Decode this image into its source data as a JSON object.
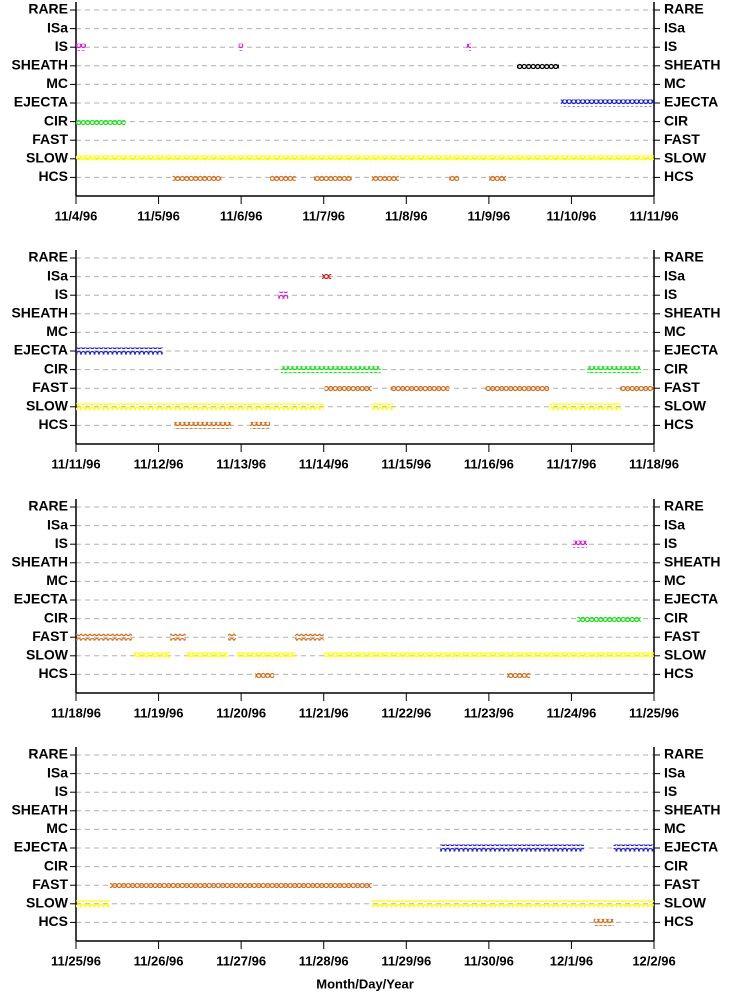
{
  "chart_data": [
    {
      "type": "timeline",
      "categories": [
        "RARE",
        "ISa",
        "IS",
        "SHEATH",
        "MC",
        "EJECTA",
        "CIR",
        "FAST",
        "SLOW",
        "HCS"
      ],
      "xlim": [
        0,
        7
      ],
      "xticks": [
        {
          "value": 0,
          "label": "11/4/96"
        },
        {
          "value": 1,
          "label": "11/5/96"
        },
        {
          "value": 2,
          "label": "11/6/96"
        },
        {
          "value": 3,
          "label": "11/7/96"
        },
        {
          "value": 4,
          "label": "11/8/96"
        },
        {
          "value": 5,
          "label": "11/9/96"
        },
        {
          "value": 6,
          "label": "11/10/96"
        },
        {
          "value": 7,
          "label": "11/11/96"
        }
      ],
      "grid": true,
      "series": [
        {
          "name": "IS",
          "color": "#d020d0",
          "intervals": [
            [
              0,
              0.12
            ],
            [
              1.97,
              1.99
            ],
            [
              4.73,
              4.75
            ]
          ]
        },
        {
          "name": "SHEATH",
          "color": "#000000",
          "intervals": [
            [
              5.34,
              5.85
            ]
          ]
        },
        {
          "name": "EJECTA",
          "color": "#2020c0",
          "intervals": [
            [
              5.87,
              7
            ]
          ]
        },
        {
          "name": "CIR",
          "color": "#20e020",
          "intervals": [
            [
              0,
              0.6
            ]
          ]
        },
        {
          "name": "SLOW",
          "color": "#ffff00",
          "intervals": [
            [
              0,
              7
            ]
          ]
        },
        {
          "name": "HCS",
          "color": "#d07020",
          "intervals": [
            [
              1.17,
              1.76
            ],
            [
              2.35,
              2.66
            ],
            [
              2.88,
              3.34
            ],
            [
              3.58,
              3.91
            ],
            [
              4.52,
              4.64
            ],
            [
              5.0,
              5.21
            ]
          ]
        }
      ]
    },
    {
      "type": "timeline",
      "categories": [
        "RARE",
        "ISa",
        "IS",
        "SHEATH",
        "MC",
        "EJECTA",
        "CIR",
        "FAST",
        "SLOW",
        "HCS"
      ],
      "xlim": [
        0,
        7
      ],
      "xticks": [
        {
          "value": 0,
          "label": "11/11/96"
        },
        {
          "value": 1,
          "label": "11/12/96"
        },
        {
          "value": 2,
          "label": "11/13/96"
        },
        {
          "value": 3,
          "label": "11/14/96"
        },
        {
          "value": 4,
          "label": "11/15/96"
        },
        {
          "value": 5,
          "label": "11/16/96"
        },
        {
          "value": 6,
          "label": "11/17/96"
        },
        {
          "value": 7,
          "label": "11/18/96"
        }
      ],
      "grid": true,
      "series": [
        {
          "name": "ISa",
          "color": "#cc2020",
          "intervals": [
            [
              2.98,
              3.09
            ]
          ]
        },
        {
          "name": "IS",
          "color": "#d020d0",
          "intervals": [
            [
              2.45,
              2.57
            ]
          ]
        },
        {
          "name": "EJECTA",
          "color": "#2020c0",
          "intervals": [
            [
              0,
              1.05
            ]
          ]
        },
        {
          "name": "CIR",
          "color": "#20e020",
          "intervals": [
            [
              2.48,
              3.69
            ],
            [
              6.19,
              6.84
            ]
          ]
        },
        {
          "name": "FAST",
          "color": "#d07020",
          "intervals": [
            [
              3.01,
              3.58
            ],
            [
              3.81,
              4.52
            ],
            [
              4.96,
              5.73
            ],
            [
              6.59,
              7
            ]
          ]
        },
        {
          "name": "SLOW",
          "color": "#ffff00",
          "intervals": [
            [
              0,
              3.0
            ],
            [
              3.58,
              3.84
            ],
            [
              5.73,
              6.6
            ]
          ]
        },
        {
          "name": "HCS",
          "color": "#d07020",
          "intervals": [
            [
              1.19,
              1.88
            ],
            [
              2.11,
              2.35
            ]
          ]
        }
      ]
    },
    {
      "type": "timeline",
      "categories": [
        "RARE",
        "ISa",
        "IS",
        "SHEATH",
        "MC",
        "EJECTA",
        "CIR",
        "FAST",
        "SLOW",
        "HCS"
      ],
      "xlim": [
        0,
        7
      ],
      "xticks": [
        {
          "value": 0,
          "label": "11/18/96"
        },
        {
          "value": 1,
          "label": "11/19/96"
        },
        {
          "value": 2,
          "label": "11/20/96"
        },
        {
          "value": 3,
          "label": "11/21/96"
        },
        {
          "value": 4,
          "label": "11/22/96"
        },
        {
          "value": 5,
          "label": "11/23/96"
        },
        {
          "value": 6,
          "label": "11/24/96"
        },
        {
          "value": 7,
          "label": "11/25/96"
        }
      ],
      "grid": true,
      "series": [
        {
          "name": "IS",
          "color": "#d020d0",
          "intervals": [
            [
              6.02,
              6.19
            ]
          ]
        },
        {
          "name": "CIR",
          "color": "#20e020",
          "intervals": [
            [
              6.07,
              6.84
            ]
          ]
        },
        {
          "name": "FAST",
          "color": "#d07020",
          "intervals": [
            [
              0,
              0.68
            ],
            [
              1.14,
              1.33
            ],
            [
              1.84,
              1.94
            ],
            [
              2.65,
              3.0
            ]
          ]
        },
        {
          "name": "SLOW",
          "color": "#ffff00",
          "intervals": [
            [
              0.7,
              1.14
            ],
            [
              1.33,
              1.84
            ],
            [
              1.95,
              2.66
            ],
            [
              3.0,
              7
            ]
          ]
        },
        {
          "name": "HCS",
          "color": "#d07020",
          "intervals": [
            [
              2.17,
              2.4
            ],
            [
              5.22,
              5.5
            ]
          ]
        }
      ]
    },
    {
      "type": "timeline",
      "categories": [
        "RARE",
        "ISa",
        "IS",
        "SHEATH",
        "MC",
        "EJECTA",
        "CIR",
        "FAST",
        "SLOW",
        "HCS"
      ],
      "xlim": [
        0,
        7
      ],
      "xticks": [
        {
          "value": 0,
          "label": "11/25/96"
        },
        {
          "value": 1,
          "label": "11/26/96"
        },
        {
          "value": 2,
          "label": "11/27/96"
        },
        {
          "value": 3,
          "label": "11/28/96"
        },
        {
          "value": 4,
          "label": "11/29/96"
        },
        {
          "value": 5,
          "label": "11/30/96"
        },
        {
          "value": 6,
          "label": "12/1/96"
        },
        {
          "value": 7,
          "label": "12/2/96"
        }
      ],
      "grid": true,
      "xlabel": "Month/Day/Year",
      "series": [
        {
          "name": "EJECTA",
          "color": "#2020c0",
          "intervals": [
            [
              4.41,
              6.15
            ],
            [
              6.51,
              7
            ]
          ]
        },
        {
          "name": "FAST",
          "color": "#d07020",
          "intervals": [
            [
              0.41,
              3.58
            ]
          ]
        },
        {
          "name": "SLOW",
          "color": "#ffff00",
          "intervals": [
            [
              0,
              0.41
            ],
            [
              3.58,
              7
            ]
          ]
        },
        {
          "name": "HCS",
          "color": "#d07020",
          "intervals": [
            [
              6.27,
              6.51
            ]
          ]
        }
      ]
    }
  ]
}
